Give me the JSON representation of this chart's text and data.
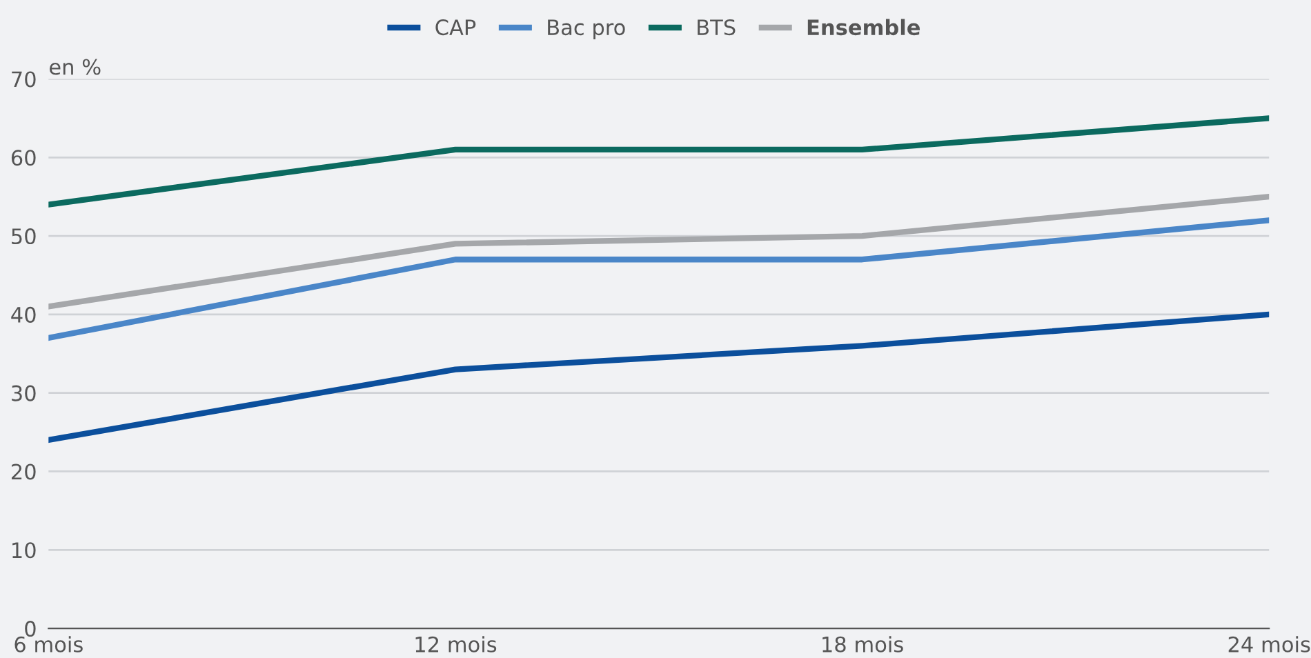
{
  "chart_data": {
    "type": "line",
    "ylabel": "en %",
    "categories": [
      "6 mois",
      "12 mois",
      "18 mois",
      "24 mois"
    ],
    "series": [
      {
        "name": "CAP",
        "color": "#0b4f9c",
        "values": [
          24,
          33,
          36,
          40
        ]
      },
      {
        "name": "Bac pro",
        "color": "#4a86c8",
        "values": [
          37,
          47,
          47,
          52
        ]
      },
      {
        "name": "BTS",
        "color": "#0b6a5f",
        "values": [
          54,
          61,
          61,
          65
        ]
      },
      {
        "name": "Ensemble",
        "color": "#a5a7aa",
        "values": [
          41,
          49,
          50,
          55
        ]
      }
    ],
    "ylim": [
      0,
      70
    ],
    "yticks": [
      0,
      10,
      20,
      30,
      40,
      50,
      60,
      70
    ],
    "grid": "y",
    "legend": "top",
    "marker": "none",
    "line_style": "solid"
  }
}
